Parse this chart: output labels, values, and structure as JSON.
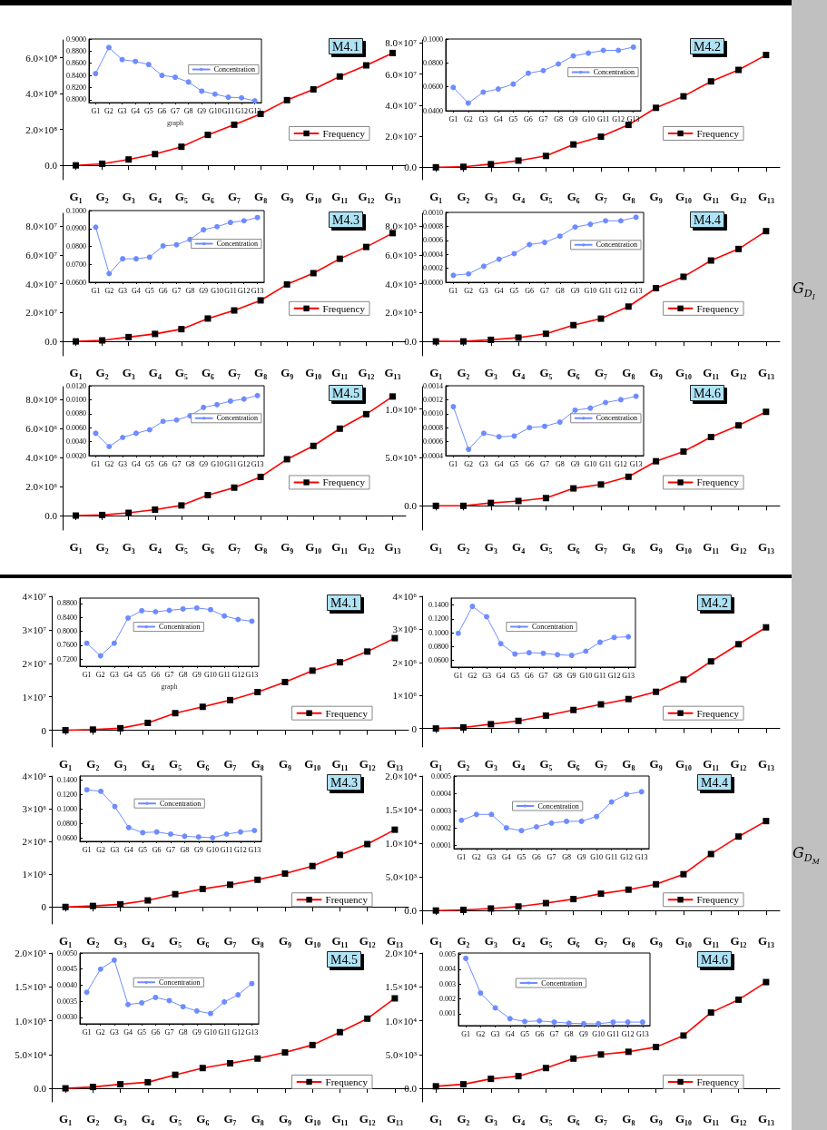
{
  "chart_data": [
    {
      "type": "line",
      "title": "M4.1",
      "categories": [
        "G₁",
        "G₂",
        "G₃",
        "G₄",
        "G₅",
        "G₆",
        "G₇",
        "G₈",
        "G₉",
        "G₁₀",
        "G₁₁",
        "G₁₂",
        "G₁₃"
      ],
      "ylim": [
        -80000000,
        700000000
      ],
      "yticks": [
        {
          "value": 0,
          "label": "0.0"
        },
        {
          "value": 200000000,
          "label": "2.0×10⁸"
        },
        {
          "value": 400000000,
          "label": "4.0×10⁸"
        },
        {
          "value": 600000000,
          "label": "6.0×10⁸"
        }
      ],
      "series": [
        {
          "name": "Frequency",
          "color": "#ff0000",
          "values": [
            0,
            9000000,
            33000000,
            63000000,
            104000000,
            170000000,
            227000000,
            287000000,
            364000000,
            424000000,
            496000000,
            558000000,
            627000000
          ]
        }
      ],
      "legend": "bottom right",
      "marker": "square",
      "line_style": "solid"
    },
    {
      "type": "line",
      "xlabel": "graph",
      "categories": [
        "G1",
        "G2",
        "G3",
        "G4",
        "G5",
        "G6",
        "G7",
        "G8",
        "G9",
        "G10",
        "G11",
        "G12",
        "G13"
      ],
      "ylim": [
        0.795,
        0.9
      ],
      "yticks": [
        {
          "value": 0.8,
          "label": "0.8000"
        },
        {
          "value": 0.82,
          "label": "0.8200"
        },
        {
          "value": 0.84,
          "label": "0.8400"
        },
        {
          "value": 0.86,
          "label": "0.8600"
        },
        {
          "value": 0.88,
          "label": "0.8800"
        },
        {
          "value": 0.9,
          "label": "0.9000"
        }
      ],
      "series": [
        {
          "name": "Concentration",
          "color": "#6e8cff",
          "values": [
            0.843,
            0.886,
            0.866,
            0.863,
            0.858,
            0.84,
            0.837,
            0.829,
            0.814,
            0.809,
            0.804,
            0.803,
            0.798
          ]
        }
      ],
      "legend": "right",
      "marker": "circle",
      "line_style": "solid"
    },
    {
      "type": "line",
      "title": "M4.2",
      "categories": [
        "G₁",
        "G₂",
        "G₃",
        "G₄",
        "G₅",
        "G₆",
        "G₇",
        "G₈",
        "G₉",
        "G₁₀",
        "G₁₁",
        "G₁₂",
        "G₁₃"
      ],
      "ylim": [
        -8000000,
        82000000
      ],
      "yticks": [
        {
          "value": 0,
          "label": "0.0"
        },
        {
          "value": 20000000,
          "label": "2.0×10⁷"
        },
        {
          "value": 40000000,
          "label": "4.0×10⁷"
        },
        {
          "value": 60000000,
          "label": "6.0×10⁷"
        },
        {
          "value": 80000000,
          "label": "8.0×10⁷"
        }
      ],
      "series": [
        {
          "name": "Frequency",
          "color": "#ff0000",
          "values": [
            0,
            300000,
            2000000,
            4300000,
            7300000,
            14700000,
            19700000,
            27300000,
            38300000,
            45700000,
            55300000,
            62700000,
            72300000
          ]
        }
      ],
      "legend": "bottom right",
      "marker": "square",
      "line_style": "solid"
    },
    {
      "type": "line",
      "categories": [
        "G1",
        "G2",
        "G3",
        "G4",
        "G5",
        "G6",
        "G7",
        "G8",
        "G9",
        "G10",
        "G11",
        "G12",
        "G13"
      ],
      "ylim": [
        0.04,
        0.1
      ],
      "yticks": [
        {
          "value": 0.04,
          "label": "0.0400"
        },
        {
          "value": 0.06,
          "label": "0.0600"
        },
        {
          "value": 0.08,
          "label": "0.0800"
        },
        {
          "value": 0.1,
          "label": "0.1000"
        }
      ],
      "series": [
        {
          "name": "Concentration",
          "color": "#6e8cff",
          "values": [
            0.0595,
            0.0464,
            0.0555,
            0.0582,
            0.0623,
            0.0714,
            0.0736,
            0.0791,
            0.0859,
            0.0882,
            0.0905,
            0.0905,
            0.0932
          ]
        }
      ],
      "legend": "right",
      "marker": "circle",
      "line_style": "solid"
    },
    {
      "type": "line",
      "title": "M4.3",
      "categories": [
        "G₁",
        "G₂",
        "G₃",
        "G₄",
        "G₅",
        "G₆",
        "G₇",
        "G₈",
        "G₉",
        "G₁₀",
        "G₁₁",
        "G₁₂",
        "G₁₃"
      ],
      "ylim": [
        -10000000,
        89000000
      ],
      "yticks": [
        {
          "value": 0,
          "label": "0.0"
        },
        {
          "value": 20000000,
          "label": "2.0×10⁷"
        },
        {
          "value": 40000000,
          "label": "4.0×10⁷"
        },
        {
          "value": 60000000,
          "label": "6.0×10⁷"
        },
        {
          "value": 80000000,
          "label": "8.0×10⁷"
        }
      ],
      "series": [
        {
          "name": "Frequency",
          "color": "#ff0000",
          "values": [
            0,
            700000,
            3000000,
            5200000,
            8500000,
            15900000,
            21500000,
            28500000,
            39600000,
            47400000,
            57400000,
            65600000,
            75200000
          ]
        }
      ],
      "legend": "bottom right",
      "marker": "square",
      "line_style": "solid"
    },
    {
      "type": "line",
      "categories": [
        "G1",
        "G2",
        "G3",
        "G4",
        "G5",
        "G6",
        "G7",
        "G8",
        "G9",
        "G10",
        "G11",
        "G12",
        "G13"
      ],
      "ylim": [
        0.06,
        0.1
      ],
      "yticks": [
        {
          "value": 0.06,
          "label": "0.0600"
        },
        {
          "value": 0.07,
          "label": "0.0700"
        },
        {
          "value": 0.08,
          "label": "0.0800"
        },
        {
          "value": 0.09,
          "label": "0.0900"
        },
        {
          "value": 0.1,
          "label": "0.1000"
        }
      ],
      "series": [
        {
          "name": "Concentration",
          "color": "#6e8cff",
          "values": [
            0.0907,
            0.0648,
            0.0731,
            0.0731,
            0.074,
            0.0803,
            0.0809,
            0.0839,
            0.0893,
            0.091,
            0.0934,
            0.0943,
            0.0961
          ]
        }
      ],
      "legend": "right",
      "marker": "circle",
      "line_style": "solid"
    },
    {
      "type": "line",
      "title": "M4.4",
      "categories": [
        "G₁",
        "G₂",
        "G₃",
        "G₄",
        "G₅",
        "G₆",
        "G₇",
        "G₈",
        "G₉",
        "G₁₀",
        "G₁₁",
        "G₁₂",
        "G₁₃"
      ],
      "ylim": [
        -100000,
        890000
      ],
      "yticks": [
        {
          "value": 0,
          "label": "0.0"
        },
        {
          "value": 200000,
          "label": "2.0×10⁵"
        },
        {
          "value": 400000,
          "label": "4.0×10⁵"
        },
        {
          "value": 600000,
          "label": "6.0×10⁵"
        },
        {
          "value": 800000,
          "label": "8.0×10⁵"
        }
      ],
      "series": [
        {
          "name": "Frequency",
          "color": "#ff0000",
          "values": [
            0,
            0,
            11000,
            26000,
            53000,
            113000,
            158000,
            242000,
            370000,
            449000,
            562000,
            642000,
            766000
          ]
        }
      ],
      "legend": "bottom right",
      "marker": "square",
      "line_style": "solid"
    },
    {
      "type": "line",
      "categories": [
        "G1",
        "G2",
        "G3",
        "G4",
        "G5",
        "G6",
        "G7",
        "G8",
        "G9",
        "G10",
        "G11",
        "G12",
        "G13"
      ],
      "ylim": [
        0,
        0.001
      ],
      "yticks": [
        {
          "value": 0,
          "label": "0.0000"
        },
        {
          "value": 0.0002,
          "label": "0.0002"
        },
        {
          "value": 0.0004,
          "label": "0.0004"
        },
        {
          "value": 0.0006,
          "label": "0.0006"
        },
        {
          "value": 0.0008,
          "label": "0.0008"
        },
        {
          "value": 0.001,
          "label": "0.0010"
        }
      ],
      "series": [
        {
          "name": "Concentration",
          "color": "#6e8cff",
          "values": [
            0.0001,
            0.00012,
            0.00023,
            0.00033,
            0.00041,
            0.00054,
            0.00057,
            0.00066,
            0.00079,
            0.00083,
            0.00088,
            0.00088,
            0.00093
          ]
        }
      ],
      "legend": "right",
      "marker": "circle",
      "line_style": "solid"
    },
    {
      "type": "line",
      "title": "M4.5",
      "categories": [
        "G₁",
        "G₂",
        "G₃",
        "G₄",
        "G₅",
        "G₆",
        "G₇",
        "G₈",
        "G₉",
        "G₁₀",
        "G₁₁",
        "G₁₂",
        "G₁₃"
      ],
      "ylim": [
        -1000000,
        8900000
      ],
      "yticks": [
        {
          "value": 0,
          "label": "0.0"
        },
        {
          "value": 2000000,
          "label": "2.0×10⁶"
        },
        {
          "value": 4000000,
          "label": "4.0×10⁶"
        },
        {
          "value": 6000000,
          "label": "6.0×10⁶"
        },
        {
          "value": 8000000,
          "label": "8.0×10⁶"
        }
      ],
      "series": [
        {
          "name": "Frequency",
          "color": "#ff0000",
          "values": [
            0,
            40000,
            190000,
            410000,
            700000,
            1410000,
            1930000,
            2670000,
            3890000,
            4810000,
            6000000,
            7000000,
            8220000
          ]
        }
      ],
      "legend": "bottom right",
      "marker": "square",
      "line_style": "solid"
    },
    {
      "type": "line",
      "categories": [
        "G1",
        "G2",
        "G3",
        "G4",
        "G5",
        "G6",
        "G7",
        "G8",
        "G9",
        "G10",
        "G11",
        "G12",
        "G13"
      ],
      "ylim": [
        0.002,
        0.012
      ],
      "yticks": [
        {
          "value": 0.002,
          "label": "0.0020"
        },
        {
          "value": 0.004,
          "label": "0.0040"
        },
        {
          "value": 0.006,
          "label": "0.0060"
        },
        {
          "value": 0.008,
          "label": "0.0080"
        },
        {
          "value": 0.01,
          "label": "0.0100"
        },
        {
          "value": 0.012,
          "label": "0.0120"
        }
      ],
      "series": [
        {
          "name": "Concentration",
          "color": "#6e8cff",
          "values": [
            0.0052,
            0.0033,
            0.0046,
            0.0052,
            0.0057,
            0.0069,
            0.0071,
            0.0077,
            0.0089,
            0.0093,
            0.0098,
            0.0101,
            0.0106
          ]
        }
      ],
      "legend": "right",
      "marker": "circle",
      "line_style": "solid"
    },
    {
      "type": "line",
      "title": "M4.6",
      "categories": [
        "G₁",
        "G₂",
        "G₃",
        "G₄",
        "G₅",
        "G₆",
        "G₇",
        "G₈",
        "G₉",
        "G₁₀",
        "G₁₁",
        "G₁₂",
        "G₁₃"
      ],
      "ylim": [
        -250000,
        1230000
      ],
      "yticks": [
        {
          "value": 0,
          "label": "0.0"
        },
        {
          "value": 500000,
          "label": "5.0×10⁵"
        },
        {
          "value": 1000000,
          "label": "1.0×10⁶"
        }
      ],
      "series": [
        {
          "name": "Frequency",
          "color": "#ff0000",
          "values": [
            0,
            0,
            30000,
            50000,
            80000,
            180000,
            220000,
            300000,
            460000,
            560000,
            710000,
            830000,
            970000
          ]
        }
      ],
      "legend": "bottom right",
      "marker": "square",
      "line_style": "solid"
    },
    {
      "type": "line",
      "categories": [
        "G1",
        "G2",
        "G3",
        "G4",
        "G5",
        "G6",
        "G7",
        "G8",
        "G9",
        "G10",
        "G11",
        "G12",
        "G13"
      ],
      "ylim": [
        0.0004,
        0.0014
      ],
      "yticks": [
        {
          "value": 0.0004,
          "label": "0.0004"
        },
        {
          "value": 0.0006,
          "label": "0.0006"
        },
        {
          "value": 0.0008,
          "label": "0.0008"
        },
        {
          "value": 0.001,
          "label": "0.0010"
        },
        {
          "value": 0.0012,
          "label": "0.0012"
        },
        {
          "value": 0.0014,
          "label": "0.0014"
        }
      ],
      "series": [
        {
          "name": "Concentration",
          "color": "#6e8cff",
          "values": [
            0.0011,
            0.00049,
            0.00072,
            0.00067,
            0.00068,
            0.0008,
            0.00082,
            0.00088,
            0.00105,
            0.00108,
            0.00116,
            0.0012,
            0.00125
          ]
        }
      ],
      "legend": "right",
      "marker": "circle",
      "line_style": "solid"
    },
    {
      "type": "other",
      "annotations": [
        "G$_{D}$$_{I}$"
      ]
    },
    {
      "type": "line",
      "title": "M4.1",
      "categories": [
        "G₁",
        "G₂",
        "G₃",
        "G₄",
        "G₅",
        "G₆",
        "G₇",
        "G₈",
        "G₉",
        "G₁₀",
        "G₁₁",
        "G₁₂",
        "G₁₃"
      ],
      "ylim": [
        -5000000,
        40000000
      ],
      "yticks": [
        {
          "value": 0,
          "label": "0"
        },
        {
          "value": 10000000,
          "label": "1×10⁷"
        },
        {
          "value": 20000000,
          "label": "2×10⁷"
        },
        {
          "value": 30000000,
          "label": "3×10⁷"
        },
        {
          "value": 40000000,
          "label": "4×10⁷"
        }
      ],
      "series": [
        {
          "name": "Frequency",
          "color": "#ff0000",
          "values": [
            0,
            200000,
            600000,
            2200000,
            5100000,
            7000000,
            9000000,
            11400000,
            14400000,
            17800000,
            20300000,
            23500000,
            27500000
          ]
        }
      ],
      "legend": "bottom right",
      "marker": "square",
      "line_style": "solid"
    },
    {
      "type": "line",
      "xlabel": "graph",
      "categories": [
        "G1",
        "G2",
        "G3",
        "G4",
        "G5",
        "G6",
        "G7",
        "G8",
        "G9",
        "G10",
        "G11",
        "G12",
        "G13"
      ],
      "ylim": [
        0.7,
        0.895
      ],
      "yticks": [
        {
          "value": 0.72,
          "label": "0.7200"
        },
        {
          "value": 0.76,
          "label": "0.7600"
        },
        {
          "value": 0.8,
          "label": "0.8000"
        },
        {
          "value": 0.84,
          "label": "0.8400"
        },
        {
          "value": 0.88,
          "label": "0.8800"
        }
      ],
      "series": [
        {
          "name": "Concentration",
          "color": "#6e8cff",
          "values": [
            0.766,
            0.73,
            0.766,
            0.838,
            0.859,
            0.856,
            0.86,
            0.864,
            0.867,
            0.862,
            0.844,
            0.834,
            0.829
          ]
        }
      ],
      "legend": "top",
      "marker": "circle",
      "line_style": "solid"
    },
    {
      "type": "line",
      "title": "M4.2",
      "categories": [
        "G₁",
        "G₂",
        "G₃",
        "G₄",
        "G₅",
        "G₆",
        "G₇",
        "G₈",
        "G₉",
        "G₁₀",
        "G₁₁",
        "G₁₂",
        "G₁₃"
      ],
      "ylim": [
        -560000,
        4000000
      ],
      "yticks": [
        {
          "value": 0,
          "label": "0"
        },
        {
          "value": 1000000,
          "label": "1×10⁶"
        },
        {
          "value": 2000000,
          "label": "2×10⁶"
        },
        {
          "value": 3000000,
          "label": "3×10⁶"
        },
        {
          "value": 4000000,
          "label": "4×10⁶"
        }
      ],
      "series": [
        {
          "name": "Frequency",
          "color": "#ff0000",
          "values": [
            0,
            30000,
            130000,
            230000,
            390000,
            560000,
            730000,
            890000,
            1110000,
            1480000,
            2030000,
            2550000,
            3060000
          ]
        }
      ],
      "legend": "bottom right",
      "marker": "square",
      "line_style": "solid"
    },
    {
      "type": "line",
      "categories": [
        "G1",
        "G2",
        "G3",
        "G4",
        "G5",
        "G6",
        "G7",
        "G8",
        "G9",
        "G10",
        "G11",
        "G12",
        "G13"
      ],
      "ylim": [
        0.05,
        0.15
      ],
      "yticks": [
        {
          "value": 0.06,
          "label": "0.0600"
        },
        {
          "value": 0.08,
          "label": "0.0800"
        },
        {
          "value": 0.1,
          "label": "0.1000"
        },
        {
          "value": 0.12,
          "label": "0.1200"
        },
        {
          "value": 0.14,
          "label": "0.1400"
        }
      ],
      "series": [
        {
          "name": "Concentration",
          "color": "#6e8cff",
          "values": [
            0.099,
            0.138,
            0.123,
            0.084,
            0.069,
            0.071,
            0.07,
            0.068,
            0.067,
            0.073,
            0.086,
            0.093,
            0.094
          ]
        }
      ],
      "legend": "top",
      "marker": "circle",
      "line_style": "solid"
    },
    {
      "type": "line",
      "title": "M4.3",
      "categories": [
        "G₁",
        "G₂",
        "G₃",
        "G₄",
        "G₅",
        "G₆",
        "G₇",
        "G₈",
        "G₉",
        "G₁₀",
        "G₁₁",
        "G₁₂",
        "G₁₃"
      ],
      "ylim": [
        -520000,
        4000000
      ],
      "yticks": [
        {
          "value": 0,
          "label": "0"
        },
        {
          "value": 1000000,
          "label": "1×10⁶"
        },
        {
          "value": 2000000,
          "label": "2×10⁶"
        },
        {
          "value": 3000000,
          "label": "3×10⁶"
        },
        {
          "value": 4000000,
          "label": "4×10⁶"
        }
      ],
      "series": [
        {
          "name": "Frequency",
          "color": "#ff0000",
          "values": [
            0,
            30000,
            80000,
            200000,
            390000,
            550000,
            680000,
            830000,
            1020000,
            1250000,
            1590000,
            1920000,
            2360000
          ]
        }
      ],
      "legend": "bottom right",
      "marker": "square",
      "line_style": "solid"
    },
    {
      "type": "line",
      "categories": [
        "G1",
        "G2",
        "G3",
        "G4",
        "G5",
        "G6",
        "G7",
        "G8",
        "G9",
        "G10",
        "G11",
        "G12",
        "G13"
      ],
      "ylim": [
        0.055,
        0.145
      ],
      "yticks": [
        {
          "value": 0.06,
          "label": "0.0600"
        },
        {
          "value": 0.08,
          "label": "0.0800"
        },
        {
          "value": 0.1,
          "label": "0.1000"
        },
        {
          "value": 0.12,
          "label": "0.1200"
        },
        {
          "value": 0.14,
          "label": "0.1400"
        }
      ],
      "series": [
        {
          "name": "Concentration",
          "color": "#6e8cff",
          "values": [
            0.126,
            0.124,
            0.103,
            0.074,
            0.067,
            0.068,
            0.065,
            0.062,
            0.061,
            0.06,
            0.065,
            0.068,
            0.07
          ]
        }
      ],
      "legend": "top",
      "marker": "circle",
      "line_style": "solid"
    },
    {
      "type": "line",
      "title": "M4.4",
      "categories": [
        "G₁",
        "G₂",
        "G₃",
        "G₄",
        "G₅",
        "G₆",
        "G₇",
        "G₈",
        "G₉",
        "G₁₀",
        "G₁₁",
        "G₁₂",
        "G₁₃"
      ],
      "ylim": [
        -2000,
        20000
      ],
      "yticks": [
        {
          "value": 0,
          "label": "0.0"
        },
        {
          "value": 5000,
          "label": "5.0×10³"
        },
        {
          "value": 10000,
          "label": "1.0×10⁴"
        },
        {
          "value": 15000,
          "label": "1.5×10⁴"
        },
        {
          "value": 20000,
          "label": "2.0×10⁴"
        }
      ],
      "series": [
        {
          "name": "Frequency",
          "color": "#ff0000",
          "values": [
            0,
            100,
            300,
            600,
            1100,
            1700,
            2500,
            3100,
            3900,
            5400,
            8400,
            11000,
            13300
          ]
        }
      ],
      "legend": "bottom right",
      "marker": "square",
      "line_style": "solid"
    },
    {
      "type": "line",
      "categories": [
        "G1",
        "G2",
        "G3",
        "G4",
        "G5",
        "G6",
        "G7",
        "G8",
        "G9",
        "G10",
        "G11",
        "G12",
        "G13"
      ],
      "ylim": [
        8e-05,
        0.0005
      ],
      "yticks": [
        {
          "value": 0.0001,
          "label": "0.0001"
        },
        {
          "value": 0.0002,
          "label": "0.0002"
        },
        {
          "value": 0.0003,
          "label": "0.0003"
        },
        {
          "value": 0.0004,
          "label": "0.0004"
        },
        {
          "value": 0.0005,
          "label": "0.0005"
        }
      ],
      "series": [
        {
          "name": "Concentration",
          "color": "#6e8cff",
          "values": [
            0.000244,
            0.000278,
            0.000278,
            0.0002,
            0.000184,
            0.000206,
            0.000228,
            0.000238,
            0.000238,
            0.000266,
            0.00035,
            0.000394,
            0.000409
          ]
        }
      ],
      "legend": "top",
      "marker": "circle",
      "line_style": "solid"
    },
    {
      "type": "line",
      "title": "M4.5",
      "categories": [
        "G₁",
        "G₂",
        "G₃",
        "G₄",
        "G₅",
        "G₆",
        "G₇",
        "G₈",
        "G₉",
        "G₁₀",
        "G₁₁",
        "G₁₂",
        "G₁₃"
      ],
      "ylim": [
        -20000,
        200000
      ],
      "yticks": [
        {
          "value": 0,
          "label": "0.0"
        },
        {
          "value": 50000,
          "label": "5.0×10⁴"
        },
        {
          "value": 100000,
          "label": "1.0×10⁵"
        },
        {
          "value": 150000,
          "label": "1.5×10⁵"
        },
        {
          "value": 200000,
          "label": "2.0×10⁵"
        }
      ],
      "series": [
        {
          "name": "Frequency",
          "color": "#ff0000",
          "values": [
            0,
            2000,
            6000,
            9000,
            20000,
            30000,
            37000,
            44000,
            53000,
            64000,
            83000,
            103000,
            133000
          ]
        }
      ],
      "legend": "bottom right",
      "marker": "square",
      "line_style": "solid"
    },
    {
      "type": "line",
      "categories": [
        "G1",
        "G2",
        "G3",
        "G4",
        "G5",
        "G6",
        "G7",
        "G8",
        "G9",
        "G10",
        "G11",
        "G12",
        "G13"
      ],
      "ylim": [
        0.0028,
        0.005
      ],
      "yticks": [
        {
          "value": 0.003,
          "label": "0.0030"
        },
        {
          "value": 0.0035,
          "label": "0.0035"
        },
        {
          "value": 0.004,
          "label": "0.0040"
        },
        {
          "value": 0.0045,
          "label": "0.0045"
        },
        {
          "value": 0.005,
          "label": "0.0050"
        }
      ],
      "series": [
        {
          "name": "Concentration",
          "color": "#6e8cff",
          "values": [
            0.00378,
            0.0045,
            0.00478,
            0.0034,
            0.00345,
            0.00362,
            0.00352,
            0.00333,
            0.0032,
            0.00312,
            0.00348,
            0.0037,
            0.00405
          ]
        }
      ],
      "legend": "top",
      "marker": "circle",
      "line_style": "solid"
    },
    {
      "type": "line",
      "title": "M4.6",
      "categories": [
        "G₁",
        "G₂",
        "G₃",
        "G₄",
        "G₅",
        "G₆",
        "G₇",
        "G₈",
        "G₉",
        "G₁₀",
        "G₁₁",
        "G₁₂",
        "G₁₃"
      ],
      "ylim": [
        -2000,
        20000
      ],
      "yticks": [
        {
          "value": 0,
          "label": "0.0"
        },
        {
          "value": 5000,
          "label": "5.0×10³"
        },
        {
          "value": 10000,
          "label": "1.0×10⁴"
        },
        {
          "value": 15000,
          "label": "1.5×10⁴"
        },
        {
          "value": 20000,
          "label": "2.0×10⁴"
        }
      ],
      "series": [
        {
          "name": "Frequency",
          "color": "#ff0000",
          "values": [
            300,
            600,
            1400,
            1800,
            3000,
            4400,
            5000,
            5400,
            6100,
            7800,
            11200,
            13100,
            15700
          ]
        }
      ],
      "legend": "bottom right",
      "marker": "square",
      "line_style": "solid"
    },
    {
      "type": "line",
      "categories": [
        "G1",
        "G2",
        "G3",
        "G4",
        "G5",
        "G6",
        "G7",
        "G8",
        "G9",
        "G10",
        "G11",
        "G12",
        "G13"
      ],
      "ylim": [
        0.0002,
        0.0051
      ],
      "yticks": [
        {
          "value": 0.001,
          "label": "0.001"
        },
        {
          "value": 0.002,
          "label": "0.002"
        },
        {
          "value": 0.003,
          "label": "0.003"
        },
        {
          "value": 0.004,
          "label": "0.004"
        },
        {
          "value": 0.005,
          "label": "0.005"
        }
      ],
      "series": [
        {
          "name": "Concentration",
          "color": "#6e8cff",
          "values": [
            0.00474,
            0.0024,
            0.0014,
            0.00067,
            0.00048,
            0.00052,
            0.00044,
            0.00037,
            0.00033,
            0.00033,
            0.00044,
            0.00044,
            0.00044
          ]
        }
      ],
      "legend": "top",
      "marker": "circle",
      "line_style": "solid"
    },
    {
      "type": "other",
      "annotations": [
        "G$_{D}$$_{M}$"
      ]
    }
  ]
}
